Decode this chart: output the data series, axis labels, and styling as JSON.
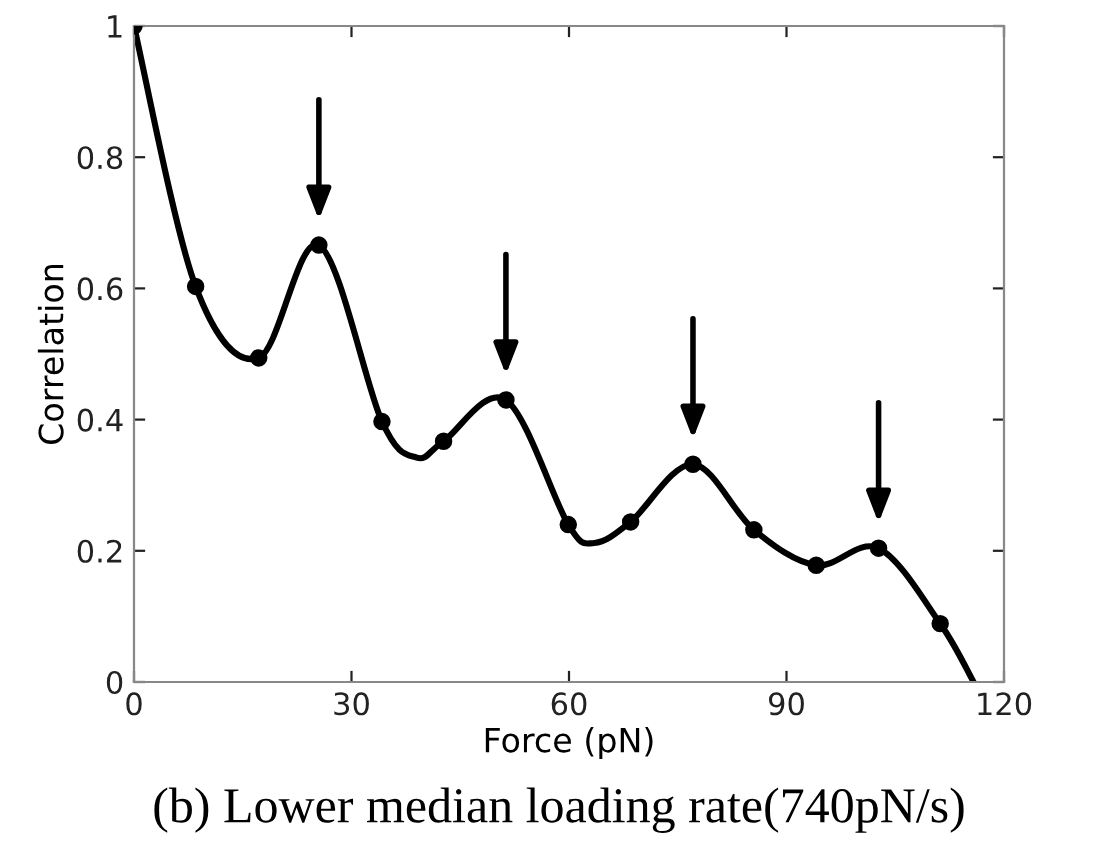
{
  "chart_data": {
    "type": "line",
    "xlabel": "Force (pN)",
    "ylabel": "Correlation",
    "xlim": [
      0,
      120
    ],
    "xticks": [
      0,
      30,
      60,
      90,
      120
    ],
    "ylim": [
      0,
      1
    ],
    "yticks": [
      0,
      0.2,
      0.4,
      0.6,
      0.8,
      1
    ],
    "grid": false,
    "legend": false,
    "series": [
      {
        "color": "#000000",
        "marker": "none",
        "x": [
          0,
          8.5,
          17.2,
          25.5,
          34.2,
          39,
          42.7,
          51.3,
          59.9,
          63.5,
          68.5,
          77.1,
          85.5,
          94.1,
          102.7,
          111.2,
          115.8
        ],
        "values": [
          1,
          0.603,
          0.494,
          0.666,
          0.397,
          0.342,
          0.367,
          0.43,
          0.24,
          0.212,
          0.244,
          0.332,
          0.232,
          0.178,
          0.204,
          0.089,
          0
        ]
      },
      {
        "type": "scatter",
        "color": "#000000",
        "marker": "circle",
        "x": [
          0,
          8.5,
          17.2,
          25.5,
          34.2,
          42.7,
          51.3,
          59.9,
          68.5,
          77.1,
          85.5,
          94.1,
          102.7,
          111.2
        ],
        "values": [
          1,
          0.603,
          0.494,
          0.666,
          0.397,
          0.367,
          0.43,
          0.24,
          0.244,
          0.332,
          0.232,
          0.178,
          0.204,
          0.089
        ]
      }
    ],
    "annotations": [
      "(b) Lower median loading rate(740pN/s)"
    ]
  }
}
